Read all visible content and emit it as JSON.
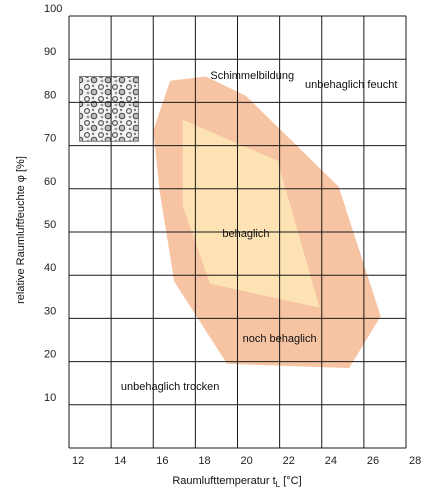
{
  "chart_data": {
    "type": "area",
    "xlabel": "Raumlufttemperatur t",
    "xlabel_sub": "L",
    "xlabel_unit": " [°C]",
    "ylabel": "relative Raumluftfeuchte  φ [%]",
    "xlim": [
      12,
      28
    ],
    "ylim": [
      0,
      100
    ],
    "x_ticks": [
      12,
      14,
      16,
      18,
      20,
      22,
      24,
      26,
      28
    ],
    "y_ticks": [
      10,
      20,
      30,
      40,
      50,
      60,
      70,
      80,
      90,
      100
    ],
    "grid": true,
    "colors": {
      "noch_behaglich": "#f7c4a3",
      "behaglich": "#fde3b3",
      "grid": "#1a1a1a",
      "mold_texture": "#9a9a9a"
    },
    "regions": [
      {
        "name": "noch behaglich",
        "color_key": "noch_behaglich",
        "points": [
          [
            16.8,
            85
          ],
          [
            18.5,
            86
          ],
          [
            20.4,
            81.5
          ],
          [
            24.8,
            60.5
          ],
          [
            26.8,
            30.5
          ],
          [
            25.3,
            18.5
          ],
          [
            19.5,
            19.5
          ],
          [
            17.0,
            38.5
          ],
          [
            16.3,
            59.5
          ],
          [
            16.0,
            73.5
          ]
        ]
      },
      {
        "name": "behaglich",
        "color_key": "behaglich",
        "points": [
          [
            17.4,
            76
          ],
          [
            21.9,
            66.5
          ],
          [
            23.9,
            32.5
          ],
          [
            18.7,
            38
          ],
          [
            17.4,
            56
          ]
        ]
      }
    ],
    "annotations": [
      {
        "text": "Schimmelbildung",
        "x": 20.7,
        "y": 86.3
      },
      {
        "text": "unbehaglich feucht",
        "x": 25.4,
        "y": 84.3
      },
      {
        "text": "behaglich",
        "x": 20.4,
        "y": 49.8
      },
      {
        "text": "noch behaglich",
        "x": 22.0,
        "y": 25.5
      },
      {
        "text": "unbehaglich trocken",
        "x": 16.8,
        "y": 14.3
      }
    ],
    "mold_image": {
      "x0": 12.5,
      "x1": 15.3,
      "y0": 71,
      "y1": 86
    }
  }
}
